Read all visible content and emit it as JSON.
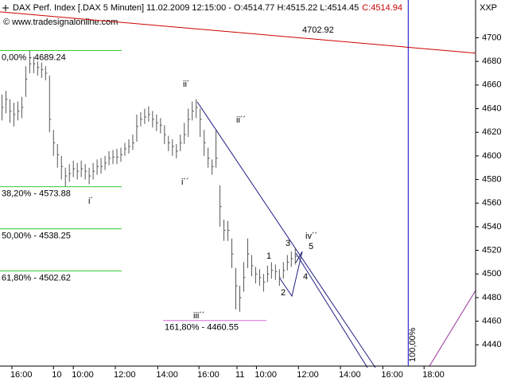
{
  "chart_data": {
    "type": "ohlc",
    "title": "DAX Perf. Index [.DAX  5 Minuten] 11.02.2009 12:15:00 - O:4514.77 H:4515.22 L:4514.45",
    "close_label": "C:4514.94",
    "watermark": "© www.tradesignalonline.com",
    "corner_label": "XXP",
    "bar_color": "#555555",
    "ylim": [
      4422,
      4732
    ],
    "yticks": [
      4440,
      4460,
      4480,
      4500,
      4520,
      4540,
      4560,
      4580,
      4600,
      4620,
      4640,
      4660,
      4680,
      4700
    ],
    "xlim": [
      -0.5,
      119.5
    ],
    "xticks": [
      {
        "value": 2.5,
        "label": "16:00"
      },
      {
        "value": 13,
        "label": "10"
      },
      {
        "value": 18,
        "label": "10:00"
      },
      {
        "value": 28.6,
        "label": "12:00"
      },
      {
        "value": 39.3,
        "label": "14:00"
      },
      {
        "value": 49.7,
        "label": "16:00"
      },
      {
        "value": 59.3,
        "label": "11"
      },
      {
        "value": 64.2,
        "label": "10:00"
      },
      {
        "value": 74.8,
        "label": "12:00"
      },
      {
        "value": 85.4,
        "label": "14:00"
      },
      {
        "value": 96.1,
        "label": "16:00"
      },
      {
        "value": 106.5,
        "label": "18:00"
      }
    ],
    "high": [
      4652,
      4655,
      4648,
      4645,
      4646,
      4650,
      4676,
      4689,
      4684,
      4680,
      4679,
      4676,
      4668,
      4622,
      4610,
      4600,
      4590,
      4593,
      4596,
      4594,
      4596,
      4593,
      4590,
      4594,
      4597,
      4598,
      4600,
      4604,
      4605,
      4606,
      4607,
      4611,
      4614,
      4618,
      4635,
      4637,
      4640,
      4642,
      4638,
      4635,
      4632,
      4626,
      4617,
      4614,
      4610,
      4618,
      4628,
      4640,
      4646,
      4648,
      4640,
      4622,
      4607,
      4597,
      4622,
      4575,
      4546,
      4545,
      4530,
      4505,
      4490,
      4510,
      4530,
      4516,
      4506,
      4504,
      4500,
      4507,
      4510,
      4508,
      4504,
      4510,
      4516,
      4519,
      4522,
      4515.22
    ],
    "low": [
      4630,
      4636,
      4628,
      4625,
      4630,
      4632,
      4650,
      4670,
      4670,
      4668,
      4666,
      4664,
      4620,
      4600,
      4590,
      4580,
      4574,
      4578,
      4582,
      4580,
      4582,
      4580,
      4576,
      4580,
      4584,
      4585,
      4588,
      4592,
      4593,
      4593,
      4595,
      4600,
      4602,
      4605,
      4612,
      4625,
      4627,
      4629,
      4624,
      4621,
      4619,
      4610,
      4604,
      4600,
      4598,
      4604,
      4610,
      4616,
      4630,
      4632,
      4616,
      4600,
      4590,
      4584,
      4590,
      4540,
      4528,
      4528,
      4505,
      4470,
      4468,
      4485,
      4505,
      4498,
      4492,
      4490,
      4485,
      4493,
      4496,
      4495,
      4490,
      4496,
      4503,
      4506,
      4508,
      4514.45
    ],
    "close": [
      4641,
      4648,
      4638,
      4635,
      4638,
      4641,
      4665,
      4678,
      4678,
      4675,
      4673,
      4670,
      4631,
      4611,
      4601,
      4591,
      4583,
      4585,
      4589,
      4587,
      4589,
      4587,
      4583,
      4587,
      4591,
      4591,
      4594,
      4598,
      4599,
      4599,
      4601,
      4606,
      4608,
      4611,
      4625,
      4631,
      4633,
      4635,
      4631,
      4628,
      4626,
      4618,
      4611,
      4608,
      4604,
      4611,
      4618,
      4631,
      4638,
      4641,
      4631,
      4611,
      4598,
      4591,
      4598,
      4557,
      4537,
      4537,
      4517,
      4490,
      4480,
      4497,
      4517,
      4507,
      4500,
      4497,
      4493,
      4500,
      4503,
      4502,
      4497,
      4503,
      4510,
      4513,
      4515,
      4514.94
    ],
    "fib_levels": [
      {
        "label": "0,00% - 4689.24",
        "value": 4689.24,
        "color": "#33cc33"
      },
      {
        "label": "38,20% - 4573.88",
        "value": 4573.88,
        "color": "#33cc33"
      },
      {
        "label": "50,00% - 4538.25",
        "value": 4538.25,
        "color": "#33cc33"
      },
      {
        "label": "61,80% - 4502.62",
        "value": 4502.62,
        "color": "#33cc33"
      },
      {
        "label": "161,80% - 4460.55",
        "value": 4460.55,
        "color": "#dd66dd"
      }
    ],
    "trendline": {
      "label": "4702.92",
      "start": 4722,
      "end": 4687,
      "color": "#cc0000"
    },
    "vline": {
      "label": "100,00%",
      "x": 102.5,
      "color": "#0000cc"
    },
    "waves": [
      "ii´",
      "i´´",
      "i´",
      "ii´´",
      "iii´´",
      "iv´´",
      "1",
      "2",
      "3",
      "4",
      "5"
    ]
  }
}
